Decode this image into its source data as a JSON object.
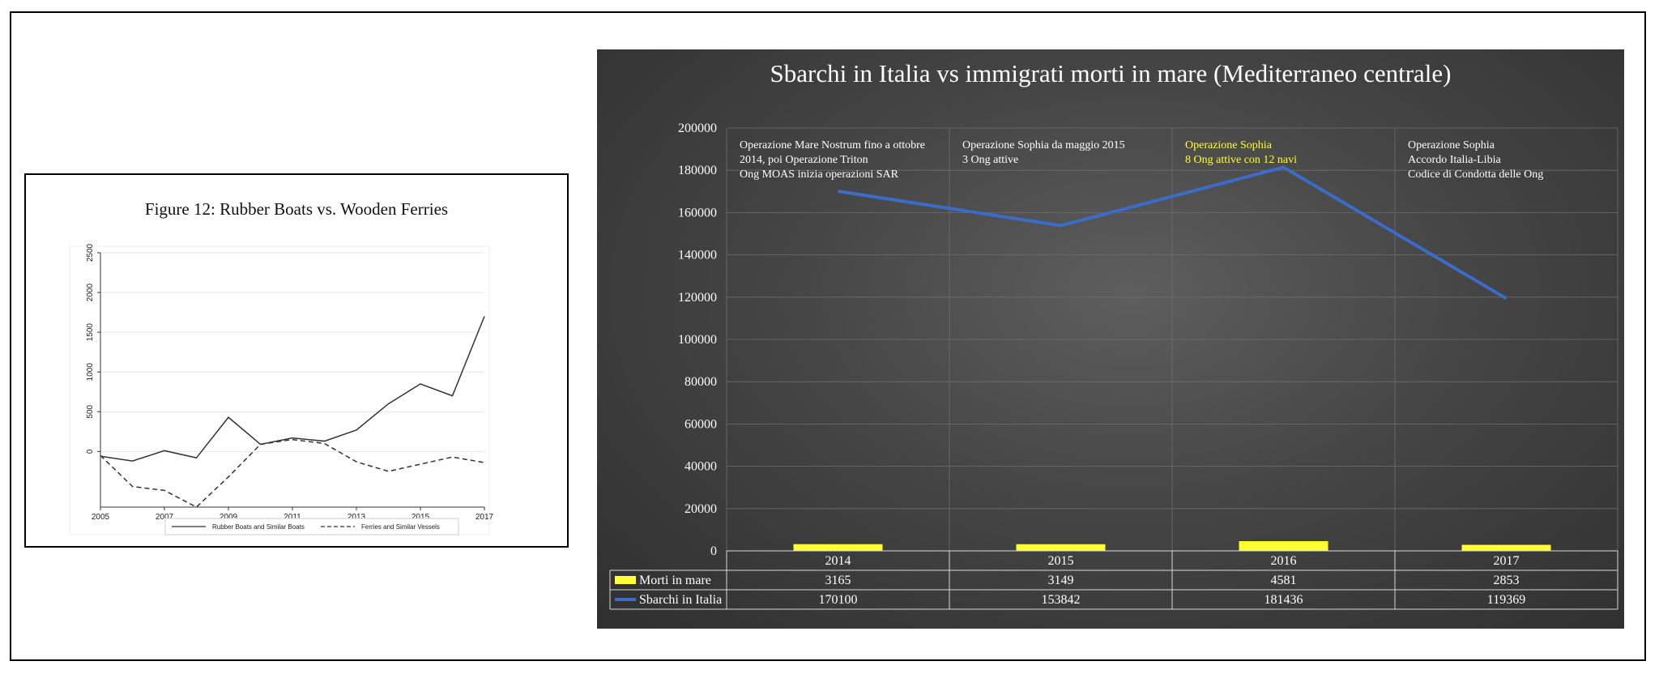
{
  "chart_data": [
    {
      "type": "line",
      "title": "Figure 12: Rubber Boats vs. Wooden Ferries",
      "x": [
        2005,
        2006,
        2007,
        2008,
        2009,
        2010,
        2011,
        2012,
        2013,
        2014,
        2015,
        2016,
        2017
      ],
      "xticks": [
        "2005",
        "2007",
        "2009",
        "2011",
        "2013",
        "2015",
        "2017"
      ],
      "yticks": [
        "0",
        "500",
        "1000",
        "1500",
        "2000",
        "2500"
      ],
      "xlim": [
        2005,
        2017
      ],
      "ylim": [
        -700,
        2500
      ],
      "grid": true,
      "legend_position": "bottom",
      "series": [
        {
          "name": "Rubber Boats and Similar Boats",
          "style": "solid",
          "values": [
            -60,
            -120,
            10,
            -80,
            430,
            90,
            170,
            130,
            270,
            600,
            850,
            700,
            1700
          ]
        },
        {
          "name": "Ferries and Similar Vessels",
          "style": "dashed",
          "values": [
            -50,
            -440,
            -490,
            -700,
            -320,
            90,
            150,
            100,
            -130,
            -250,
            -160,
            -70,
            -140
          ]
        }
      ]
    },
    {
      "type": "bar+line",
      "title": "Sbarchi in Italia vs immigrati morti in mare (Mediterraneo centrale)",
      "categories": [
        "2014",
        "2015",
        "2016",
        "2017"
      ],
      "ylim": [
        0,
        200000
      ],
      "yticks": [
        "0",
        "20000",
        "40000",
        "60000",
        "80000",
        "100000",
        "120000",
        "140000",
        "160000",
        "180000",
        "200000"
      ],
      "grid": true,
      "series": [
        {
          "name": "Morti in mare",
          "kind": "bar",
          "color": "#ffff33",
          "values": [
            3165,
            3149,
            4581,
            2853
          ]
        },
        {
          "name": "Sbarchi in Italia",
          "kind": "line",
          "color": "#3b6cc9",
          "values": [
            170100,
            153842,
            181436,
            119369
          ]
        }
      ],
      "table": {
        "rows": [
          {
            "label": "Morti in mare",
            "values": [
              "3165",
              "3149",
              "4581",
              "2853"
            ]
          },
          {
            "label": "Sbarchi in Italia",
            "values": [
              "170100",
              "153842",
              "181436",
              "119369"
            ]
          }
        ]
      },
      "annotations": [
        {
          "lines": [
            "Operazione Mare Nostrum fino a ottobre",
            "2014, poi Operazione Triton",
            "Ong MOAS inizia operazioni SAR"
          ],
          "color": "#ffffff"
        },
        {
          "lines": [
            "Operazione Sophia da maggio 2015",
            "3 Ong attive"
          ],
          "color": "#ffffff"
        },
        {
          "lines": [
            "Operazione Sophia",
            "8 Ong attive con 12 navi"
          ],
          "color": "#ffff33"
        },
        {
          "lines": [
            "Operazione Sophia",
            "Accordo Italia-Libia",
            "Codice di Condotta delle Ong"
          ],
          "color": "#ffffff"
        }
      ]
    }
  ]
}
